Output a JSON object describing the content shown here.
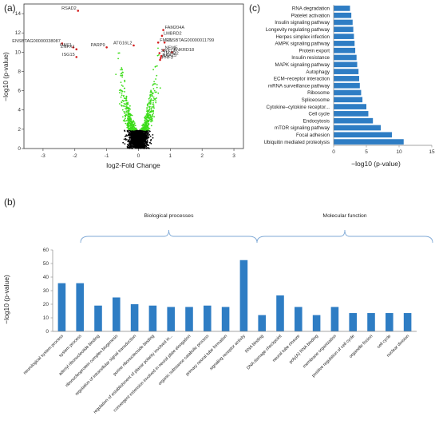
{
  "panels": {
    "a": "(a)",
    "b": "(b)",
    "c": "(c)"
  },
  "chart_data": [
    {
      "panel": "(a)",
      "type": "scatter",
      "xlabel": "log2-Fold Change",
      "ylabel": "−log10 (p-value)",
      "xlim": [
        -3.6,
        3.3
      ],
      "ylim": [
        0,
        15
      ],
      "xticks": [
        "-3",
        "-2",
        "-1",
        "0",
        "1",
        "2",
        "3"
      ],
      "yticks": [
        "0",
        "2",
        "4",
        "6",
        "8",
        "10",
        "12",
        "14"
      ],
      "significance_threshold": 1.9,
      "grid": false,
      "colors": {
        "not_significant": "#000000",
        "significant": "#3ddc1a",
        "top": "#d42020"
      },
      "labeled_points": [
        {
          "label": "RSAD2",
          "x": -1.9,
          "y": 14.3
        },
        {
          "label": "ENSBTAG00000038087",
          "x": -2.4,
          "y": 10.9
        },
        {
          "label": "OAS1",
          "x": -2.05,
          "y": 10.5
        },
        {
          "label": "ZNFX1",
          "x": -1.95,
          "y": 10.3
        },
        {
          "label": "PARP9",
          "x": -1.0,
          "y": 10.5
        },
        {
          "label": "ATG16L2",
          "x": -0.15,
          "y": 10.7
        },
        {
          "label": "ISG15",
          "x": -1.95,
          "y": 9.5
        },
        {
          "label": "FAM204A",
          "x": 0.78,
          "y": 12.3
        },
        {
          "label": "LMBRD2",
          "x": 0.74,
          "y": 11.7
        },
        {
          "label": "FMR1",
          "x": 0.62,
          "y": 11.0
        },
        {
          "label": "ENSBTAG00000011799",
          "x": 0.82,
          "y": 11.0
        },
        {
          "label": "NEMF",
          "x": 0.78,
          "y": 10.2
        },
        {
          "label": "ANKRD18",
          "x": 1.05,
          "y": 10.0
        },
        {
          "label": "SNX13",
          "x": 0.66,
          "y": 9.9
        },
        {
          "label": "ZMYM2",
          "x": 0.72,
          "y": 9.6
        },
        {
          "label": "NAA25",
          "x": 0.7,
          "y": 9.4
        },
        {
          "label": "PHF3",
          "x": 0.68,
          "y": 9.2
        }
      ]
    },
    {
      "panel": "(b)",
      "type": "bar",
      "ylabel": "−log10 (p-value)",
      "ylim": [
        0,
        60
      ],
      "yticks": [
        "0",
        "10",
        "20",
        "30",
        "40",
        "50",
        "60"
      ],
      "color": "#2e7dc4",
      "groups": [
        {
          "label": "Biological processes",
          "from": 0,
          "to": 16
        },
        {
          "label": "Molecular function",
          "from": 17,
          "to": 27
        }
      ],
      "categories": [
        "neurological system process",
        "system process",
        "adenyl ribonucleotide binding",
        "ribonucleoprotein complex biogenesis",
        "regulation of intracellular signal transduction",
        "purine ribonucleoside binding",
        "regulation of establishment of planar polarity involved in...",
        "convergent extension involved in neural plate elongation",
        "organic substance catabolic process",
        "primary neural tube formation",
        "signaling receptor activity",
        "RNA binding",
        "DNA damage checkpoint",
        "neural tube closure",
        "poly(A) RNA binding",
        "membrane organization",
        "positive regulation of cell cycle",
        "organelle fission",
        "cell cycle",
        "nuclear division"
      ],
      "values": [
        35.5,
        35.5,
        19,
        25,
        20,
        19,
        18,
        18,
        19,
        18,
        52.5,
        12,
        26.5,
        18,
        12,
        18,
        13.5,
        13.5,
        13.5,
        13.5
      ]
    },
    {
      "panel": "(c)",
      "type": "bar",
      "orientation": "horizontal",
      "xlabel": "−log10 (p-value)",
      "xlim": [
        0,
        15
      ],
      "xticks": [
        "0",
        "5",
        "10",
        "15"
      ],
      "color": "#2e7dc4",
      "categories": [
        "RNA degradation",
        "Platelet activation",
        "Insulin signaling pathway",
        "Longevity regulating pathway",
        "Herpes simplex infection",
        "AMPK signaling pathway",
        "Protein export",
        "Insulin resistance",
        "MAPK signaling pathway",
        "Autophagy",
        "ECM–receptor interaction",
        "mRNA surveillance pathway",
        "Ribosome",
        "Spliceosome",
        "Cytokine–cytokine receptor...",
        "Cell cycle",
        "Endocytosis",
        "mTOR signaling pathway",
        "Focal adhesion",
        "Ubiquitin mediated proteolysis"
      ],
      "values": [
        2.5,
        2.7,
        2.9,
        3.0,
        3.1,
        3.2,
        3.3,
        3.5,
        3.6,
        3.8,
        3.9,
        4.0,
        4.2,
        4.4,
        5.0,
        5.3,
        6.0,
        7.2,
        8.9,
        10.7
      ]
    }
  ]
}
